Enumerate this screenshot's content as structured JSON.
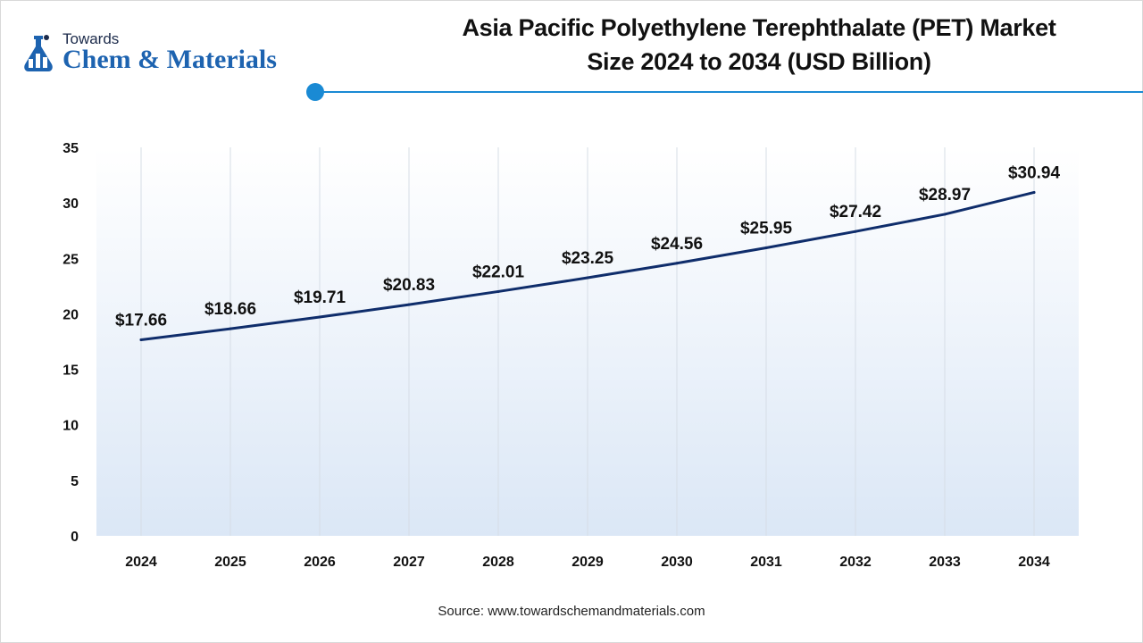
{
  "logo": {
    "top_text": "Towards",
    "main_text": "Chem & Materials",
    "accent_color": "#1d63b0"
  },
  "title_line1": "Asia Pacific Polyethylene Terephthalate (PET) Market",
  "title_line2": "Size 2024 to 2034 (USD Billion)",
  "source": "Source: www.towardschemandmaterials.com",
  "chart_data": {
    "type": "line",
    "title": "Asia Pacific Polyethylene Terephthalate (PET) Market Size 2024 to 2034 (USD Billion)",
    "xlabel": "",
    "ylabel": "",
    "x": [
      "2024",
      "2025",
      "2026",
      "2027",
      "2028",
      "2029",
      "2030",
      "2031",
      "2032",
      "2033",
      "2034"
    ],
    "values": [
      17.66,
      18.66,
      19.71,
      20.83,
      22.01,
      23.25,
      24.56,
      25.95,
      27.42,
      28.97,
      30.94
    ],
    "data_labels": [
      "$17.66",
      "$18.66",
      "$19.71",
      "$20.83",
      "$22.01",
      "$23.25",
      "$24.56",
      "$25.95",
      "$27.42",
      "$28.97",
      "$30.94"
    ],
    "ylim": [
      0,
      35
    ],
    "yticks": [
      "0",
      "5",
      "10",
      "15",
      "20",
      "25",
      "30",
      "35"
    ],
    "grid": "vertical",
    "legend": "none",
    "line_color": "#0f2d6b",
    "area_gradient_top": "#ffffff",
    "area_gradient_bottom": "#dbe7f6"
  }
}
